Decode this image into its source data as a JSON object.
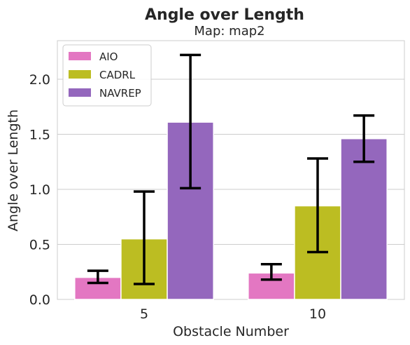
{
  "chart_data": {
    "type": "bar",
    "title": "Angle over Length",
    "subtitle": "Map: map2",
    "xlabel": "Obstacle Number",
    "ylabel": "Angle over Length",
    "categories": [
      "5",
      "10"
    ],
    "ylim": [
      0,
      2.35
    ],
    "yticks": [
      "0.0",
      "0.5",
      "1.0",
      "1.5",
      "2.0"
    ],
    "ytick_values": [
      0,
      0.5,
      1.0,
      1.5,
      2.0
    ],
    "grid": true,
    "legend_placement": "top-left",
    "series": [
      {
        "name": "AIO",
        "color": "#e377c2",
        "values": [
          0.2,
          0.24
        ],
        "err_low": [
          0.15,
          0.18
        ],
        "err_high": [
          0.26,
          0.32
        ]
      },
      {
        "name": "CADRL",
        "color": "#bcbd22",
        "values": [
          0.55,
          0.85
        ],
        "err_low": [
          0.14,
          0.43
        ],
        "err_high": [
          0.98,
          1.28
        ]
      },
      {
        "name": "NAVREP",
        "color": "#9467bd",
        "values": [
          1.61,
          1.46
        ],
        "err_low": [
          1.01,
          1.25
        ],
        "err_high": [
          2.22,
          1.67
        ]
      }
    ]
  }
}
